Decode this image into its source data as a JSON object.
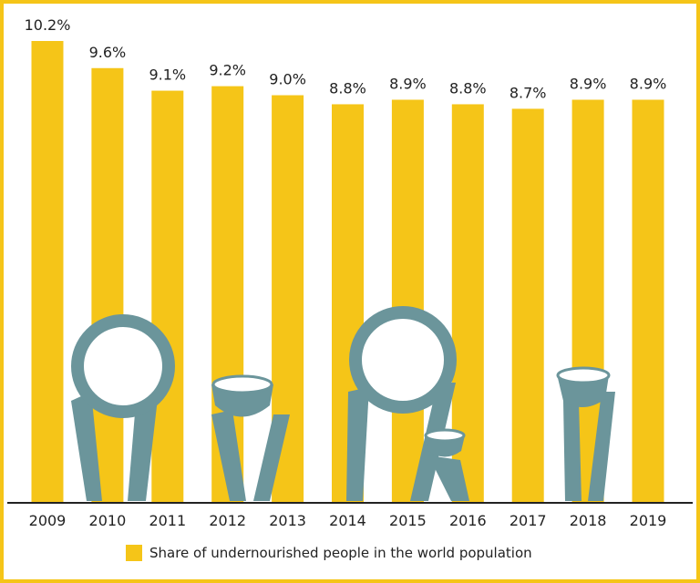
{
  "chart_data": {
    "type": "bar",
    "categories": [
      "2009",
      "2010",
      "2011",
      "2012",
      "2013",
      "2014",
      "2015",
      "2016",
      "2017",
      "2018",
      "2019"
    ],
    "values": [
      10.2,
      9.6,
      9.1,
      9.2,
      9.0,
      8.8,
      8.9,
      8.8,
      8.7,
      8.9,
      8.9
    ],
    "data_labels": [
      "10.2%",
      "9.6%",
      "9.1%",
      "9.2%",
      "9.0%",
      "8.8%",
      "8.9%",
      "8.8%",
      "8.7%",
      "8.9%",
      "8.9%"
    ],
    "series": [
      {
        "name": "Share of undernourished people in the world population",
        "values": [
          10.2,
          9.6,
          9.1,
          9.2,
          9.0,
          8.8,
          8.9,
          8.8,
          8.7,
          8.9,
          8.9
        ]
      }
    ],
    "title": "",
    "xlabel": "",
    "ylabel": "",
    "ylim": [
      0,
      10.2
    ],
    "grid": false,
    "legend": "bottom",
    "colors": {
      "bar": "#f5c518",
      "illustration": "#6b959b",
      "frame": "#f5c518"
    }
  },
  "legend": {
    "label": "Share of undernourished people in the world population"
  }
}
